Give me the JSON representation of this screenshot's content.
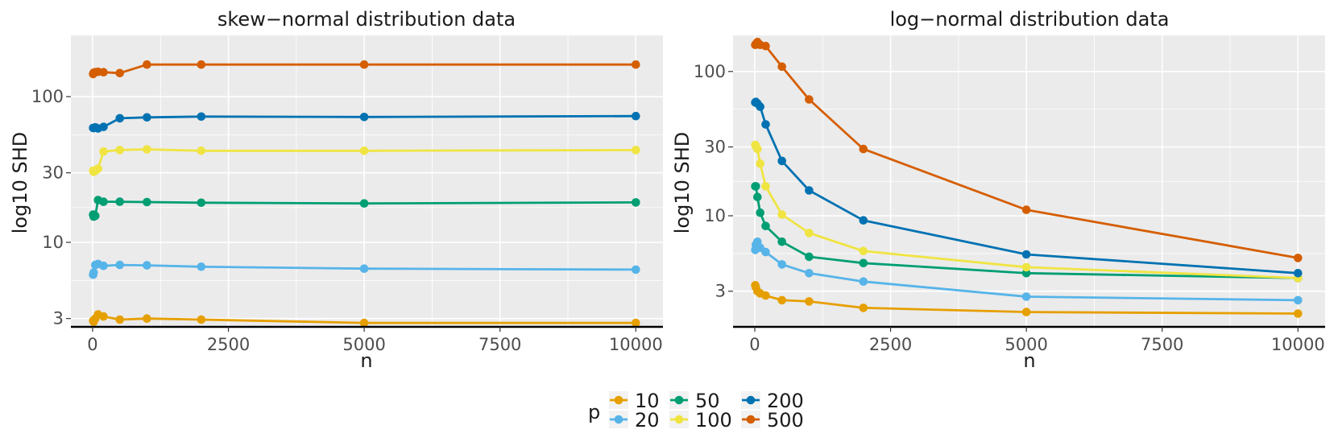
{
  "chart_data": [
    {
      "type": "line",
      "title": "skew−normal distribution data",
      "xlabel": "n",
      "ylabel": "log10 SHD",
      "xlim": [
        -400,
        10500
      ],
      "ylim_log10": [
        0.42,
        2.42
      ],
      "x_ticks": [
        0,
        2500,
        5000,
        7500,
        10000
      ],
      "x_tick_labels": [
        "0",
        "2500",
        "5000",
        "7500",
        "10000"
      ],
      "y_ticks": [
        3,
        10,
        30,
        100
      ],
      "y_tick_labels": [
        "3",
        "10",
        "30",
        "100"
      ],
      "grid": true,
      "x": [
        10,
        20,
        50,
        100,
        200,
        500,
        1000,
        2000,
        5000,
        10000
      ],
      "series": [
        {
          "name": "10",
          "values": [
            2.9,
            2.85,
            3.0,
            3.2,
            3.1,
            2.95,
            3.0,
            2.95,
            2.8,
            2.8
          ]
        },
        {
          "name": "20",
          "values": [
            6.0,
            6.2,
            7.0,
            7.1,
            6.9,
            7.0,
            6.95,
            6.8,
            6.6,
            6.5
          ]
        },
        {
          "name": "50",
          "values": [
            15.5,
            15.0,
            15.2,
            19.5,
            19.0,
            19.0,
            18.9,
            18.7,
            18.5,
            18.8
          ]
        },
        {
          "name": "100",
          "values": [
            31.0,
            30.5,
            31.0,
            32.0,
            42.0,
            43.0,
            43.5,
            42.5,
            42.5,
            43.0
          ]
        },
        {
          "name": "200",
          "values": [
            61.0,
            61.0,
            61.5,
            60.5,
            62.0,
            71.0,
            72.0,
            73.0,
            72.5,
            73.5
          ]
        },
        {
          "name": "500",
          "values": [
            143.0,
            146.0,
            147.0,
            148.0,
            147.0,
            145.0,
            166.0,
            166.0,
            166.0,
            166.0
          ]
        }
      ]
    },
    {
      "type": "line",
      "title": "log−normal distribution data",
      "xlabel": "n",
      "ylabel": "log10 SHD",
      "xlim": [
        -400,
        10500
      ],
      "ylim_log10": [
        0.23,
        2.25
      ],
      "x_ticks": [
        0,
        2500,
        5000,
        7500,
        10000
      ],
      "x_tick_labels": [
        "0",
        "2500",
        "5000",
        "7500",
        "10000"
      ],
      "y_ticks": [
        3,
        10,
        30,
        100
      ],
      "y_tick_labels": [
        "3",
        "10",
        "30",
        "100"
      ],
      "grid": true,
      "x": [
        10,
        20,
        50,
        100,
        200,
        500,
        1000,
        2000,
        5000,
        10000
      ],
      "series": [
        {
          "name": "10",
          "values": [
            3.3,
            3.2,
            3.0,
            2.9,
            2.8,
            2.6,
            2.55,
            2.3,
            2.15,
            2.1
          ]
        },
        {
          "name": "20",
          "values": [
            5.8,
            6.3,
            6.6,
            6.0,
            5.6,
            4.6,
            4.0,
            3.5,
            2.75,
            2.6
          ]
        },
        {
          "name": "50",
          "values": [
            16.0,
            16.0,
            13.5,
            10.5,
            8.5,
            6.6,
            5.2,
            4.7,
            4.0,
            3.7
          ]
        },
        {
          "name": "100",
          "values": [
            31.0,
            30.5,
            29.0,
            23.0,
            16.0,
            10.2,
            7.6,
            5.7,
            4.4,
            3.7
          ]
        },
        {
          "name": "200",
          "values": [
            61.0,
            61.5,
            60.0,
            57.0,
            43.0,
            24.0,
            15.0,
            9.3,
            5.4,
            4.0
          ]
        },
        {
          "name": "500",
          "values": [
            153.0,
            155.0,
            160.0,
            153.0,
            150.0,
            108.0,
            64.0,
            29.0,
            11.0,
            5.1
          ]
        }
      ]
    }
  ],
  "legend": {
    "title": "p",
    "placement": "bottom",
    "items": [
      {
        "label": "10",
        "color": "#E69F00"
      },
      {
        "label": "20",
        "color": "#56B4E9"
      },
      {
        "label": "50",
        "color": "#009E73"
      },
      {
        "label": "100",
        "color": "#F0E442"
      },
      {
        "label": "200",
        "color": "#0072B2"
      },
      {
        "label": "500",
        "color": "#D55E00"
      }
    ]
  },
  "colors": {
    "panel_bg": "#EBEBEB",
    "grid": "#FFFFFF",
    "axis_line": "#000000"
  }
}
